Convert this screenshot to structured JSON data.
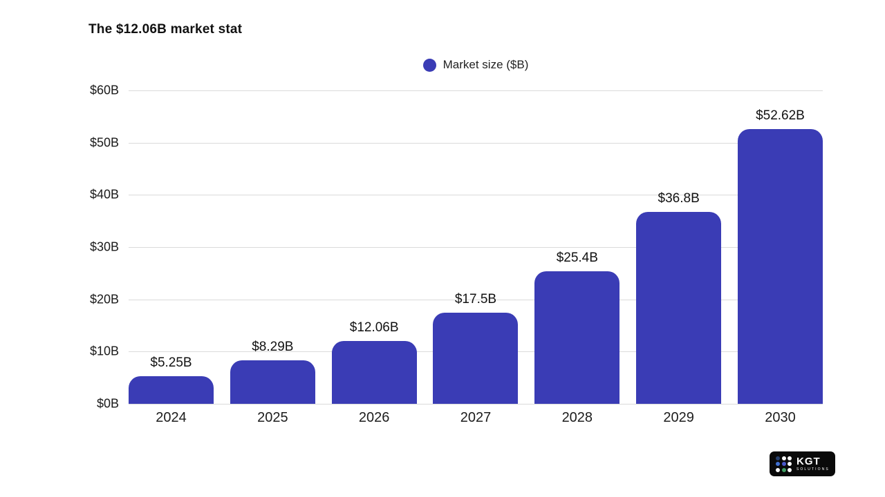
{
  "title": "The $12.06B market stat",
  "legend": {
    "label": "Market size ($B)",
    "color": "#3a3cb5",
    "dot_icon": "circle-icon"
  },
  "chart_data": {
    "type": "bar",
    "title": "The $12.06B market stat",
    "categories": [
      "2024",
      "2025",
      "2026",
      "2027",
      "2028",
      "2029",
      "2030"
    ],
    "series": [
      {
        "name": "Market size ($B)",
        "values": [
          5.25,
          8.29,
          12.06,
          17.5,
          25.4,
          36.8,
          52.62
        ]
      }
    ],
    "data_labels": [
      "$5.25B",
      "$8.29B",
      "$12.06B",
      "$17.5B",
      "$25.4B",
      "$36.8B",
      "$52.62B"
    ],
    "xlabel": "",
    "ylabel": "",
    "ylim": [
      0,
      60
    ],
    "yticks": [
      0,
      10,
      20,
      30,
      40,
      50,
      60
    ],
    "ytick_labels": [
      "$0B",
      "$10B",
      "$20B",
      "$30B",
      "$40B",
      "$50B",
      "$60B"
    ],
    "legend_position": "top-center",
    "grid": "horizontal",
    "bar_color": "#3a3cb5",
    "gridline_color": "#dadada"
  },
  "logo": {
    "name": "KGT",
    "subtext": "SOLUTIONS",
    "background": "#0a0a0a",
    "dot_colors": [
      "#27406e",
      "#ffffff",
      "#ffffff",
      "#3f6fd1",
      "#4a58c9",
      "#ffffff",
      "#ffffff",
      "#3f9e63",
      "#ffffff"
    ]
  }
}
